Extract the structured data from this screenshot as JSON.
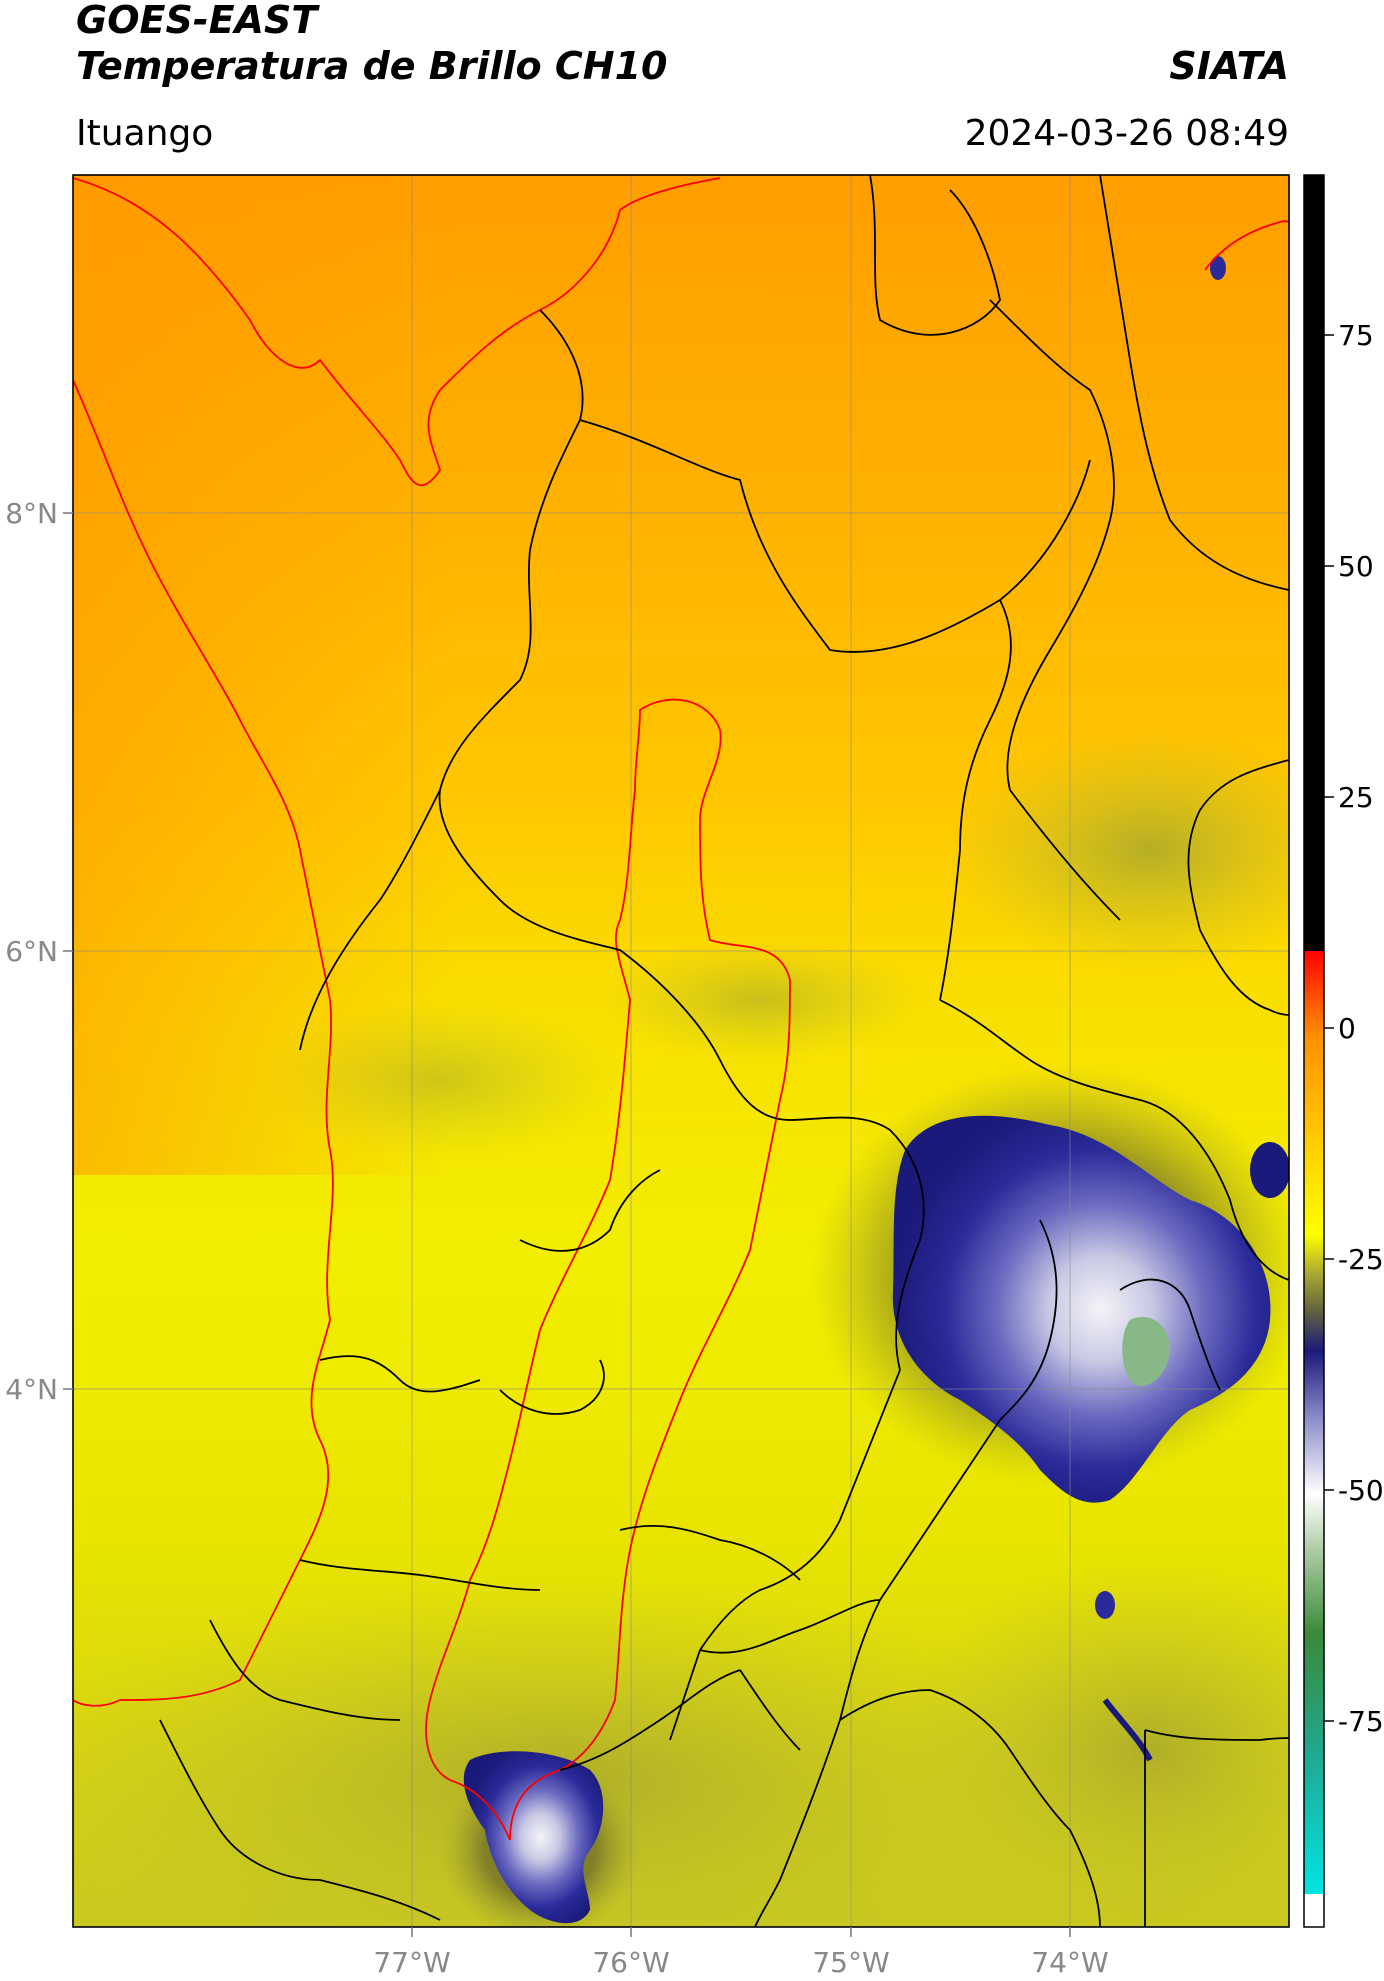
{
  "header": {
    "satellite": "GOES-EAST",
    "product": "Temperatura de Brillo CH10",
    "organization": "SIATA",
    "location": "Ituango",
    "timestamp": "2024-03-26 08:49"
  },
  "map": {
    "lon_ticks": [
      "77°W",
      "76°W",
      "75°W",
      "74°W"
    ],
    "lat_ticks": [
      "8°N",
      "6°N",
      "4°N"
    ],
    "gridlines": true,
    "colors": {
      "warm": "#ff9a00",
      "mid": "#ffd200",
      "cool": "#f2f200",
      "olive": "#b8b83a",
      "cloud_dark": "#1a1a8c",
      "cloud_mid": "#5a5ab8",
      "cloud_light": "#d8d8ea",
      "coldest": "#8ab88a",
      "admin_borders": "#000000",
      "region_border": "#ff0000"
    }
  },
  "colorbar": {
    "tick_labels": [
      "75",
      "50",
      "25",
      "0",
      "-25",
      "-50",
      "-75"
    ],
    "colors": [
      "#ffffff",
      "#00e0e0",
      "#20a080",
      "#3a8a3a",
      "#ffffff",
      "#1a1a7a",
      "#999940",
      "#ffff00",
      "#ff9000",
      "#ff0000",
      "#000000"
    ]
  }
}
